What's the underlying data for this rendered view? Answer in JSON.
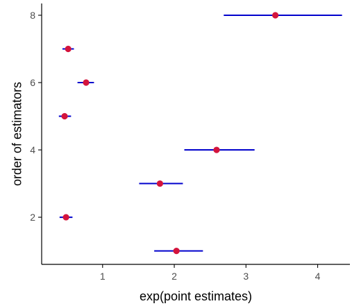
{
  "chart_data": {
    "type": "scatter",
    "title": "",
    "xlabel": "exp(point estimates)",
    "ylabel": "order of estimators",
    "xlim": [
      0.15,
      4.45
    ],
    "ylim": [
      0.6,
      8.35
    ],
    "x_ticks": [
      1,
      2,
      3,
      4
    ],
    "y_ticks": [
      2,
      4,
      6,
      8
    ],
    "x_tick_labels": [
      "1",
      "2",
      "3",
      "4"
    ],
    "y_tick_labels": [
      "2",
      "4",
      "6",
      "8"
    ],
    "grid": false,
    "legend": "none",
    "colors": {
      "point": "#d4143c",
      "interval": "#0000cc",
      "axis": "#000000"
    },
    "points": [
      {
        "y": 1,
        "x": 2.03,
        "lower": 1.72,
        "upper": 2.4
      },
      {
        "y": 2,
        "x": 0.49,
        "lower": 0.4,
        "upper": 0.58
      },
      {
        "y": 3,
        "x": 1.8,
        "lower": 1.51,
        "upper": 2.12
      },
      {
        "y": 4,
        "x": 2.59,
        "lower": 2.14,
        "upper": 3.12
      },
      {
        "y": 5,
        "x": 0.47,
        "lower": 0.39,
        "upper": 0.56
      },
      {
        "y": 6,
        "x": 0.77,
        "lower": 0.65,
        "upper": 0.88
      },
      {
        "y": 7,
        "x": 0.52,
        "lower": 0.44,
        "upper": 0.6
      },
      {
        "y": 8,
        "x": 3.41,
        "lower": 2.69,
        "upper": 4.34
      }
    ]
  }
}
